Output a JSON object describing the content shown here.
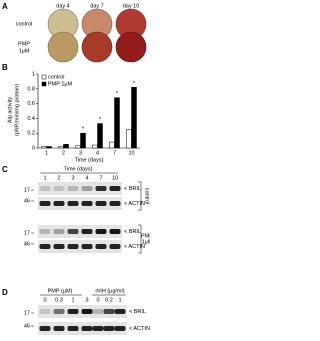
{
  "panel_a": {
    "label": "A",
    "columns": [
      "day 4",
      "day 7",
      "day 10"
    ],
    "rows": [
      [
        "control"
      ],
      [
        "PMP",
        "1μM"
      ]
    ]
  },
  "chart_data": {
    "type": "bar",
    "panel_label": "B",
    "ylabel": [
      "Alp activity",
      "(pNP/min/mg protein)"
    ],
    "xlabel": "Time (days)",
    "categories": [
      "1",
      "2",
      "3",
      "4",
      "7",
      "10"
    ],
    "series": [
      {
        "name": "control",
        "color": "#ffffff",
        "values": [
          0.02,
          0.02,
          0.03,
          0.04,
          0.08,
          0.25
        ]
      },
      {
        "name": "PMP 1μM",
        "color": "#000000",
        "values": [
          0.02,
          0.05,
          0.2,
          0.33,
          0.68,
          0.82
        ]
      }
    ],
    "significance": [
      null,
      null,
      "*",
      "*",
      "*",
      "*"
    ],
    "ylim": [
      0,
      1
    ],
    "yticks": [
      0,
      0.2,
      0.4,
      0.6,
      0.8,
      1
    ],
    "legend": "top-left"
  },
  "panel_c": {
    "label": "C",
    "title": "Time (days)",
    "lanes": [
      "1",
      "2",
      "3",
      "4",
      "7",
      "10"
    ],
    "markers": [
      "17",
      "46"
    ],
    "proteins": [
      "< BRIL",
      "< ACTIN"
    ],
    "groups": [
      [
        "control"
      ],
      [
        "PMP",
        "1μM"
      ]
    ]
  },
  "panel_d": {
    "label": "D",
    "groups": [
      {
        "title": "PMP (μM)",
        "lanes": [
          "0",
          "0.3",
          "1",
          "3"
        ]
      },
      {
        "title": "rhIH (μg/ml)",
        "lanes": [
          "0",
          "0.2",
          "1"
        ]
      }
    ],
    "markers": [
      "17",
      "46"
    ],
    "proteins": [
      "< BRIL",
      "< ACTIN"
    ]
  }
}
